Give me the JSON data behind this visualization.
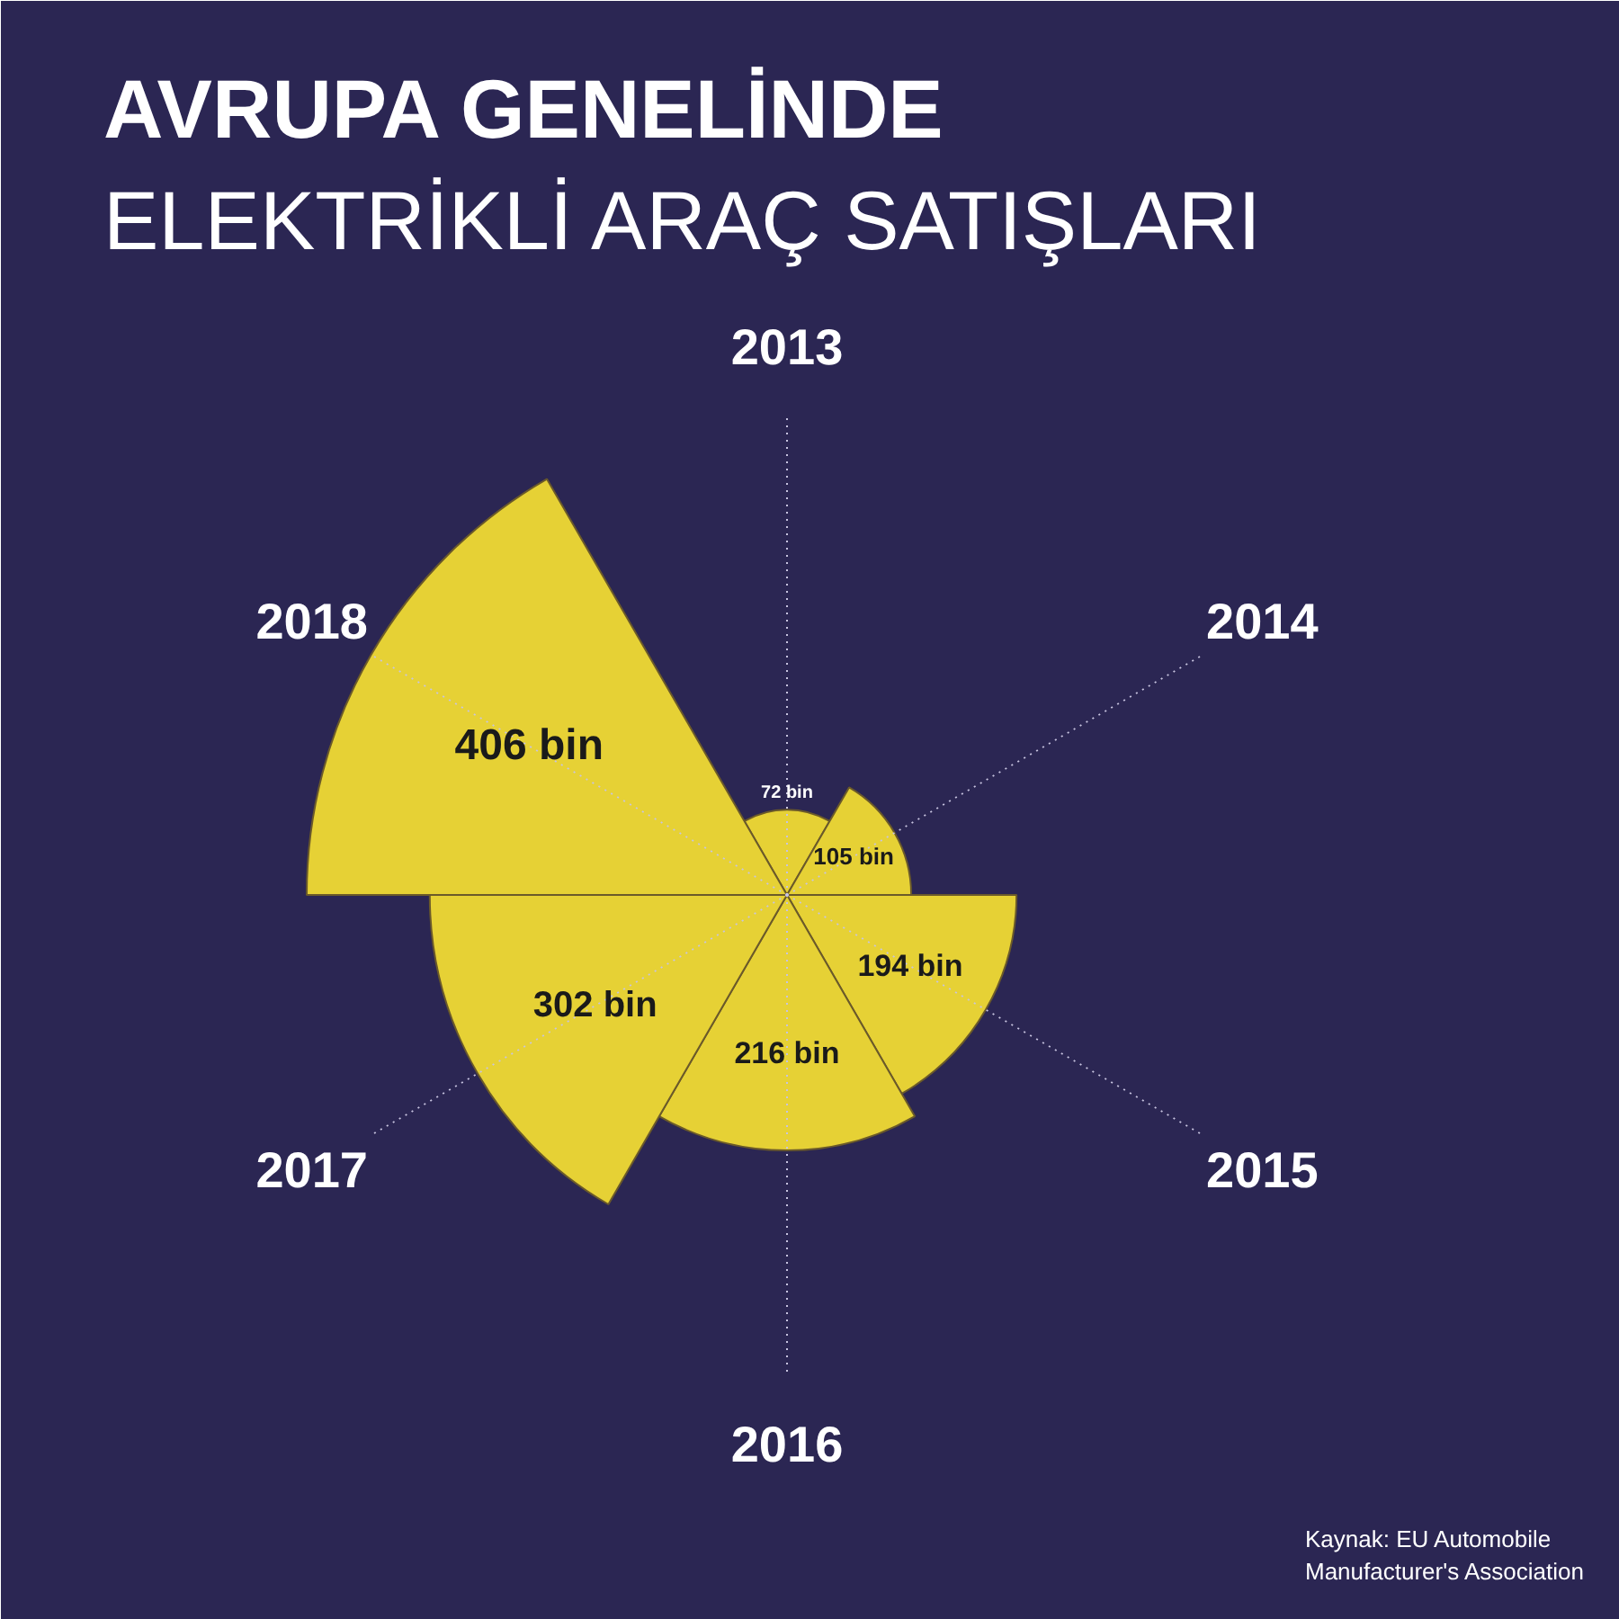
{
  "chart_data": {
    "type": "other",
    "title": "AVRUPA GENELİNDE\nELEKTRİKLİ ARAÇ SATIŞLARI",
    "categories": [
      "2013",
      "2014",
      "2015",
      "2016",
      "2017",
      "2018"
    ],
    "values": [
      72,
      105,
      194,
      216,
      302,
      406
    ],
    "value_labels": [
      "72 bin",
      "105 bin",
      "194 bin",
      "216 bin",
      "302 bin",
      "406 bin"
    ],
    "color": "#e6d135",
    "annotations": [
      "Kaynak: EU Automobile Manufacturer's Association"
    ]
  }
}
